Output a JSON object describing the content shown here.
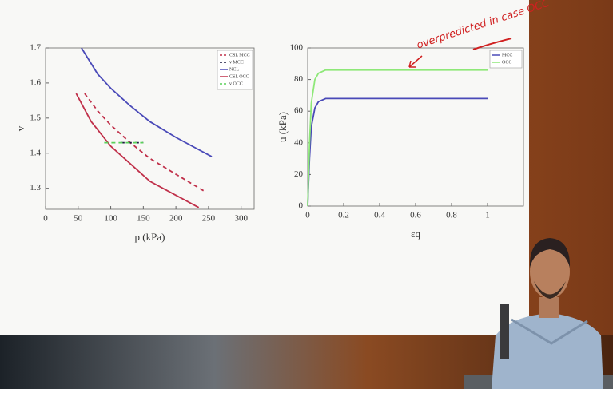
{
  "chart_data": [
    {
      "type": "line",
      "x_label": "p (kPa)",
      "y_label": "v",
      "xlim": [
        0,
        320
      ],
      "ylim": [
        1.24,
        1.7
      ],
      "xticks": [
        0,
        50,
        100,
        150,
        200,
        250,
        300
      ],
      "yticks": [
        1.3,
        1.4,
        1.5,
        1.6,
        1.7
      ],
      "legend": "upper right",
      "series": [
        {
          "name": "CSL MCC",
          "color": "#c0304a",
          "dashed": true,
          "x": [
            60,
            80,
            100,
            130,
            160,
            200,
            245
          ],
          "values": [
            1.57,
            1.52,
            1.48,
            1.43,
            1.385,
            1.34,
            1.29
          ]
        },
        {
          "name": "v MCC",
          "color": "#1a1a40",
          "dashed": true,
          "x": [
            115,
            150
          ],
          "values": [
            1.43,
            1.43
          ]
        },
        {
          "name": "NCL",
          "color": "#4a4ab8",
          "dashed": false,
          "x": [
            55,
            80,
            100,
            130,
            160,
            200,
            255
          ],
          "values": [
            1.7,
            1.625,
            1.585,
            1.535,
            1.49,
            1.445,
            1.39
          ]
        },
        {
          "name": "CSL OCC",
          "color": "#c0304a",
          "dashed": false,
          "x": [
            47,
            70,
            100,
            130,
            160,
            200,
            235
          ],
          "values": [
            1.57,
            1.49,
            1.42,
            1.37,
            1.32,
            1.28,
            1.245
          ]
        },
        {
          "name": "v OCC",
          "color": "#5ad05a",
          "dashed": true,
          "x": [
            90,
            150
          ],
          "values": [
            1.43,
            1.43
          ]
        }
      ]
    },
    {
      "type": "line",
      "x_label": "εq",
      "y_label": "u (kPa)",
      "xlim": [
        0,
        1.2
      ],
      "ylim": [
        0,
        100
      ],
      "xticks": [
        0,
        0.2,
        0.4,
        0.6,
        0.8,
        1
      ],
      "yticks": [
        0,
        20,
        40,
        60,
        80,
        100
      ],
      "legend": "upper right",
      "annotation": "overpredicted in case OCC",
      "series": [
        {
          "name": "MCC",
          "color": "#4a4ab8",
          "dashed": false,
          "x": [
            0,
            0.01,
            0.02,
            0.04,
            0.06,
            0.1,
            0.15,
            1
          ],
          "values": [
            0,
            30,
            50,
            62,
            66,
            68,
            68,
            68
          ]
        },
        {
          "name": "OCC",
          "color": "#8ee878",
          "dashed": false,
          "x": [
            0,
            0.01,
            0.02,
            0.04,
            0.06,
            0.1,
            1
          ],
          "values": [
            0,
            40,
            65,
            80,
            84,
            86,
            86
          ]
        }
      ]
    }
  ]
}
